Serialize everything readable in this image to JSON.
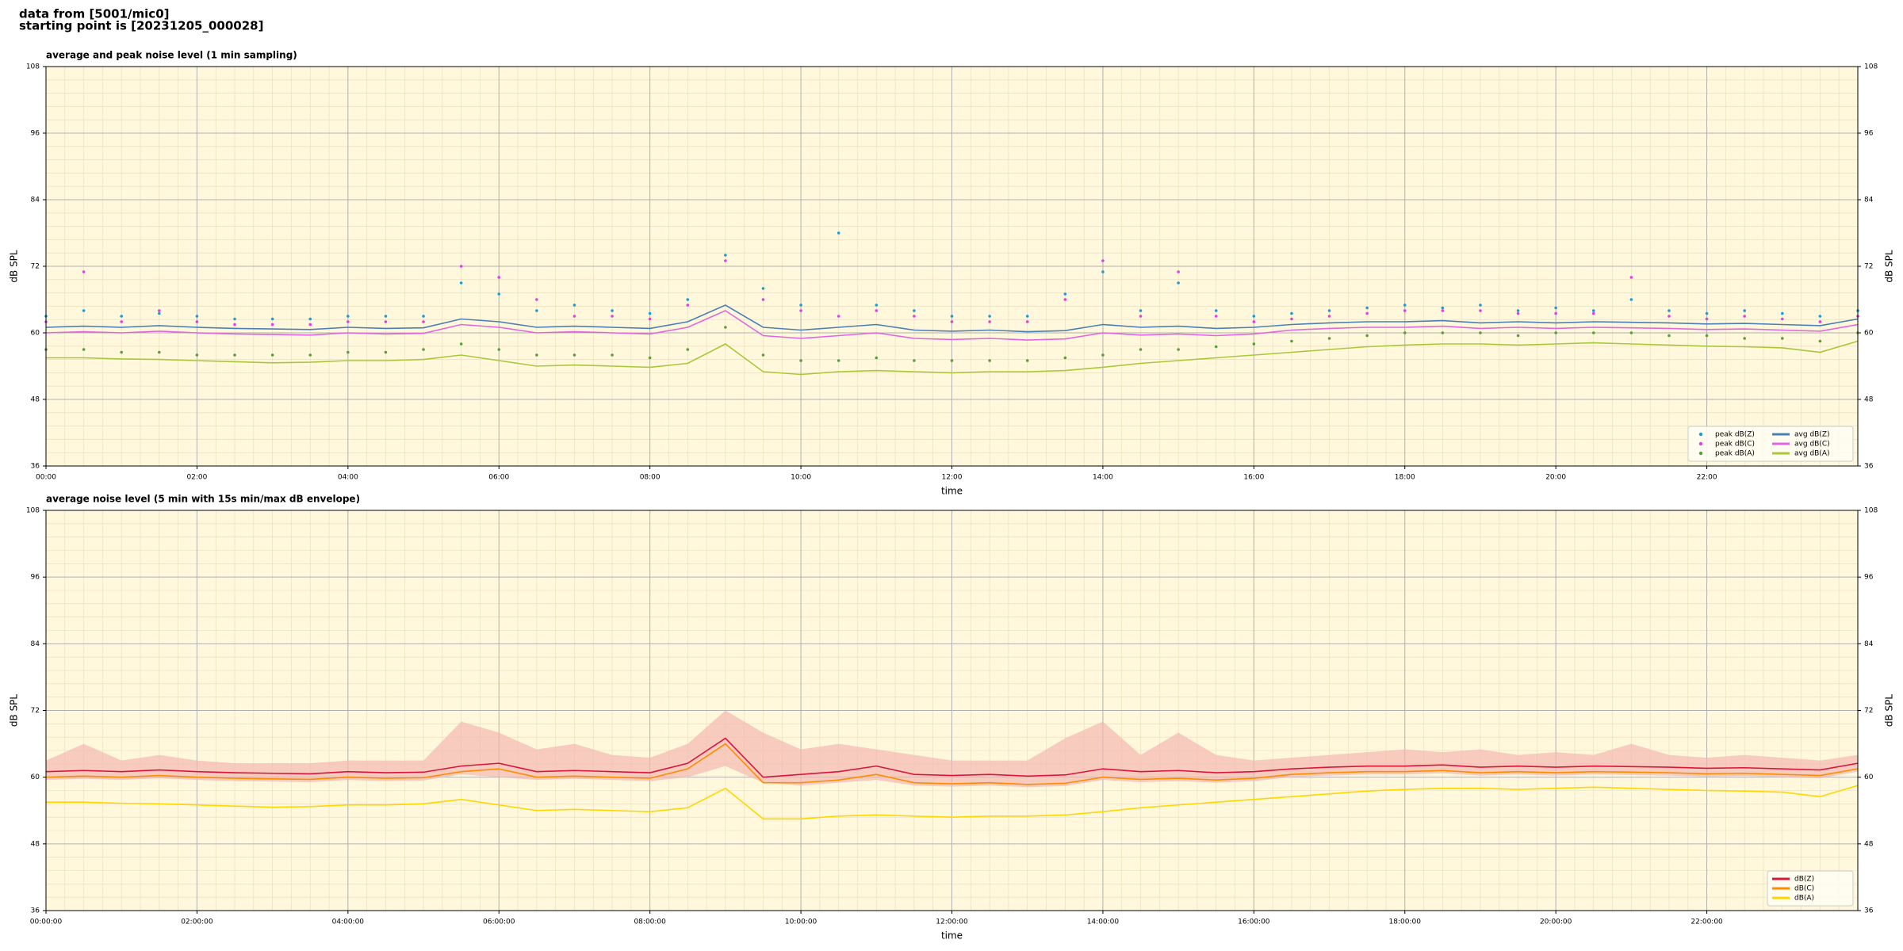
{
  "header": {
    "lines": [
      "data from [5001/mic0]",
      "starting point is [20231205_000028]"
    ]
  },
  "chart_data": [
    {
      "type": "line",
      "title": "average and peak noise level (1 min sampling)",
      "xlabel": "time",
      "ylabel": "dB SPL",
      "xlim": [
        0,
        24
      ],
      "ylim": [
        36,
        108
      ],
      "yticks": [
        36,
        48,
        60,
        72,
        84,
        96,
        108
      ],
      "xticks": [
        {
          "value": 0,
          "label": "00:00"
        },
        {
          "value": 2,
          "label": "02:00"
        },
        {
          "value": 4,
          "label": "04:00"
        },
        {
          "value": 6,
          "label": "06:00"
        },
        {
          "value": 8,
          "label": "08:00"
        },
        {
          "value": 10,
          "label": "10:00"
        },
        {
          "value": 12,
          "label": "12:00"
        },
        {
          "value": 14,
          "label": "14:00"
        },
        {
          "value": 16,
          "label": "16:00"
        },
        {
          "value": 18,
          "label": "18:00"
        },
        {
          "value": 20,
          "label": "20:00"
        },
        {
          "value": 22,
          "label": "22:00"
        }
      ],
      "grid": true,
      "background": "#fff8dc",
      "legend": "lower right",
      "legend_columns": 2,
      "x": [
        0,
        0.5,
        1,
        1.5,
        2,
        2.5,
        3,
        3.5,
        4,
        4.5,
        5,
        5.5,
        6,
        6.5,
        7,
        7.5,
        8,
        8.5,
        9,
        9.5,
        10,
        10.5,
        11,
        11.5,
        12,
        12.5,
        13,
        13.5,
        14,
        14.5,
        15,
        15.5,
        16,
        16.5,
        17,
        17.5,
        18,
        18.5,
        19,
        19.5,
        20,
        20.5,
        21,
        21.5,
        22,
        22.5,
        23,
        23.5,
        24
      ],
      "series": [
        {
          "name": "peak dB(Z)",
          "type": "scatter",
          "color": "#1f9bcf",
          "values": [
            63,
            64,
            63,
            63.5,
            63,
            62.5,
            62.5,
            62.5,
            63,
            63,
            63,
            69,
            67,
            64,
            65,
            64,
            63.5,
            66,
            74,
            68,
            65,
            78,
            65,
            64,
            63,
            63,
            63,
            67,
            71,
            64,
            69,
            64,
            63,
            63.5,
            64,
            64.5,
            65,
            64.5,
            65,
            64,
            64.5,
            64,
            66,
            64,
            63.5,
            64,
            63.5,
            63,
            64
          ]
        },
        {
          "name": "peak dB(C)",
          "type": "scatter",
          "color": "#e040e0",
          "values": [
            62,
            71,
            62,
            64,
            62,
            61.5,
            61.5,
            61.5,
            62,
            62,
            62,
            72,
            70,
            66,
            63,
            63,
            62.5,
            65,
            73,
            66,
            64,
            63,
            64,
            63,
            62,
            62,
            62,
            66,
            73,
            63,
            71,
            63,
            62,
            62.5,
            63,
            63.5,
            64,
            64,
            64,
            63.5,
            63.5,
            63.5,
            70,
            63,
            62.5,
            63,
            62.5,
            62,
            63
          ]
        },
        {
          "name": "peak dB(A)",
          "type": "scatter",
          "color": "#5a9e3a",
          "values": [
            57,
            57,
            56.5,
            56.5,
            56,
            56,
            56,
            56,
            56.5,
            56.5,
            57,
            58,
            57,
            56,
            56,
            56,
            55.5,
            57,
            61,
            56,
            55,
            55,
            55.5,
            55,
            55,
            55,
            55,
            55.5,
            56,
            57,
            57,
            57.5,
            58,
            58.5,
            59,
            59.5,
            60,
            60,
            60,
            59.5,
            60,
            60,
            60,
            59.5,
            59.5,
            59,
            59,
            58.5,
            60
          ]
        },
        {
          "name": "avg dB(Z)",
          "type": "line",
          "color": "#4a7fb5",
          "values": [
            61,
            61.2,
            61,
            61.3,
            61,
            60.8,
            60.7,
            60.6,
            61,
            60.8,
            60.9,
            62.5,
            62,
            61,
            61.2,
            61,
            60.8,
            62,
            65,
            61,
            60.5,
            61,
            61.5,
            60.5,
            60.3,
            60.5,
            60.2,
            60.4,
            61.5,
            61,
            61.2,
            60.8,
            61,
            61.5,
            61.8,
            62,
            62,
            62.2,
            61.8,
            62,
            61.8,
            62,
            61.9,
            61.8,
            61.6,
            61.7,
            61.5,
            61.3,
            62.5
          ]
        },
        {
          "name": "avg dB(C)",
          "type": "line",
          "color": "#e066e0",
          "values": [
            60,
            60.2,
            60,
            60.3,
            60,
            59.8,
            59.7,
            59.6,
            60,
            59.8,
            59.9,
            61.5,
            61,
            60,
            60.2,
            60,
            59.8,
            61,
            64,
            59.5,
            59,
            59.5,
            60,
            59,
            58.8,
            59,
            58.7,
            58.9,
            60,
            59.6,
            59.8,
            59.5,
            59.8,
            60.5,
            60.8,
            61,
            61,
            61.2,
            60.8,
            61,
            60.8,
            61,
            60.9,
            60.8,
            60.6,
            60.7,
            60.5,
            60.3,
            61.5
          ]
        },
        {
          "name": "avg dB(A)",
          "type": "line",
          "color": "#a8c83c",
          "values": [
            55.5,
            55.5,
            55.3,
            55.2,
            55,
            54.8,
            54.6,
            54.7,
            55,
            55,
            55.2,
            56,
            55,
            54,
            54.2,
            54,
            53.8,
            54.5,
            58,
            53,
            52.5,
            53,
            53.2,
            53,
            52.8,
            53,
            53,
            53.2,
            53.8,
            54.5,
            55,
            55.5,
            56,
            56.5,
            57,
            57.5,
            57.8,
            58,
            58,
            57.8,
            58,
            58.2,
            58,
            57.8,
            57.6,
            57.5,
            57.3,
            56.5,
            58.5
          ]
        }
      ]
    },
    {
      "type": "line",
      "title": "average noise level (5 min with 15s min/max dB envelope)",
      "xlabel": "time",
      "ylabel": "dB SPL",
      "xlim": [
        0,
        24
      ],
      "ylim": [
        36,
        108
      ],
      "yticks": [
        36,
        48,
        60,
        72,
        84,
        96,
        108
      ],
      "xticks": [
        {
          "value": 0,
          "label": "00:00:00"
        },
        {
          "value": 2,
          "label": "02:00:00"
        },
        {
          "value": 4,
          "label": "04:00:00"
        },
        {
          "value": 6,
          "label": "06:00:00"
        },
        {
          "value": 8,
          "label": "08:00:00"
        },
        {
          "value": 10,
          "label": "10:00:00"
        },
        {
          "value": 12,
          "label": "12:00:00"
        },
        {
          "value": 14,
          "label": "14:00:00"
        },
        {
          "value": 16,
          "label": "16:00:00"
        },
        {
          "value": 18,
          "label": "18:00:00"
        },
        {
          "value": 20,
          "label": "20:00:00"
        },
        {
          "value": 22,
          "label": "22:00:00"
        }
      ],
      "grid": true,
      "background": "#fff8dc",
      "legend": "lower right",
      "legend_columns": 1,
      "x": [
        0,
        0.5,
        1,
        1.5,
        2,
        2.5,
        3,
        3.5,
        4,
        4.5,
        5,
        5.5,
        6,
        6.5,
        7,
        7.5,
        8,
        8.5,
        9,
        9.5,
        10,
        10.5,
        11,
        11.5,
        12,
        12.5,
        13,
        13.5,
        14,
        14.5,
        15,
        15.5,
        16,
        16.5,
        17,
        17.5,
        18,
        18.5,
        19,
        19.5,
        20,
        20.5,
        21,
        21.5,
        22,
        22.5,
        23,
        23.5,
        24
      ],
      "envelope": {
        "color": "#f4b8b0",
        "upper": [
          63,
          66,
          63,
          64,
          63,
          62.5,
          62.5,
          62.5,
          63,
          63,
          63,
          70,
          68,
          65,
          66,
          64,
          63.5,
          66,
          72,
          68,
          65,
          66,
          65,
          64,
          63,
          63,
          63,
          67,
          70,
          64,
          68,
          64,
          63,
          63.5,
          64,
          64.5,
          65,
          64.5,
          65,
          64,
          64.5,
          64,
          66,
          64,
          63.5,
          64,
          63.5,
          63,
          64
        ],
        "lower": [
          59.5,
          59.7,
          59.5,
          59.8,
          59.5,
          59.3,
          59.2,
          59.1,
          59.5,
          59.3,
          59.4,
          60.5,
          60,
          59.5,
          59.7,
          59.5,
          59.3,
          60,
          62,
          59,
          58.5,
          59,
          59.5,
          58.5,
          58.3,
          58.5,
          58.2,
          58.4,
          59.5,
          59.1,
          59.3,
          59,
          59.3,
          60,
          60.3,
          60.5,
          60.5,
          60.7,
          60.3,
          60.5,
          60.3,
          60.5,
          60.4,
          60.3,
          60.1,
          60.2,
          60,
          59.8,
          61
        ]
      },
      "series": [
        {
          "name": "dB(Z)",
          "type": "line",
          "color": "#dc143c",
          "values": [
            61,
            61.2,
            61,
            61.3,
            61,
            60.8,
            60.7,
            60.6,
            61,
            60.8,
            60.9,
            62,
            62.5,
            61,
            61.2,
            61,
            60.8,
            62.5,
            67,
            60,
            60.5,
            61,
            62,
            60.5,
            60.3,
            60.5,
            60.2,
            60.4,
            61.5,
            61,
            61.2,
            60.8,
            61,
            61.5,
            61.8,
            62,
            62,
            62.2,
            61.8,
            62,
            61.8,
            62,
            61.9,
            61.8,
            61.6,
            61.7,
            61.5,
            61.3,
            62.5
          ]
        },
        {
          "name": "dB(C)",
          "type": "line",
          "color": "#ff8c00",
          "values": [
            60,
            60.2,
            60,
            60.3,
            60,
            59.8,
            59.7,
            59.6,
            60,
            59.8,
            59.9,
            61,
            61.5,
            60,
            60.2,
            60,
            59.8,
            61.5,
            66,
            59,
            59,
            59.5,
            60.5,
            59,
            58.8,
            59,
            58.7,
            58.9,
            60,
            59.6,
            59.8,
            59.5,
            59.8,
            60.5,
            60.8,
            61,
            61,
            61.2,
            60.8,
            61,
            60.8,
            61,
            60.9,
            60.8,
            60.6,
            60.7,
            60.5,
            60.3,
            61.5
          ]
        },
        {
          "name": "dB(A)",
          "type": "line",
          "color": "#ffd700",
          "values": [
            55.5,
            55.5,
            55.3,
            55.2,
            55,
            54.8,
            54.6,
            54.7,
            55,
            55,
            55.2,
            56,
            55,
            54,
            54.2,
            54,
            53.8,
            54.5,
            58,
            52.5,
            52.5,
            53,
            53.2,
            53,
            52.8,
            53,
            53,
            53.2,
            53.8,
            54.5,
            55,
            55.5,
            56,
            56.5,
            57,
            57.5,
            57.8,
            58,
            58,
            57.8,
            58,
            58.2,
            58,
            57.8,
            57.6,
            57.5,
            57.3,
            56.5,
            58.5
          ]
        }
      ]
    }
  ]
}
